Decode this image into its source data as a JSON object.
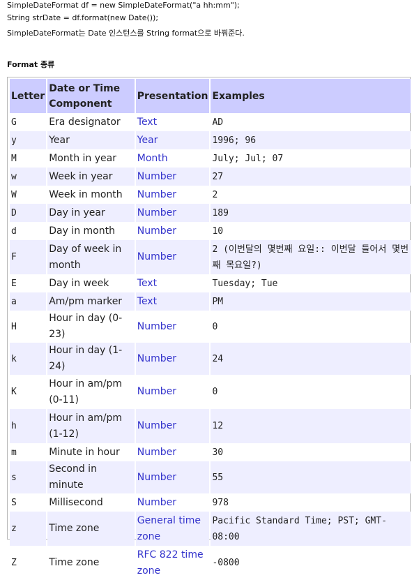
{
  "code_lines": [
    "SimpleDateFormat df = new SimpleDateFormat(\"a hh:mm\");",
    "String strDate = df.format(new Date());",
    "SimpleDateFormat는 Date 인스턴스를 String format으로 바꿔준다."
  ],
  "section_title": "Format 종류",
  "table": {
    "headers": [
      "Letter",
      "Date or Time Component",
      "Presentation",
      "Examples"
    ],
    "rows": [
      {
        "letter": "G",
        "component": "Era designator",
        "presentation": "Text",
        "example": "AD"
      },
      {
        "letter": "y",
        "component": "Year",
        "presentation": "Year",
        "example": "1996; 96"
      },
      {
        "letter": "M",
        "component": "Month in year",
        "presentation": "Month",
        "example": "July; Jul; 07"
      },
      {
        "letter": "w",
        "component": "Week in year",
        "presentation": "Number",
        "example": "27"
      },
      {
        "letter": "W",
        "component": "Week in month",
        "presentation": "Number",
        "example": "2"
      },
      {
        "letter": "D",
        "component": "Day in year",
        "presentation": "Number",
        "example": "189"
      },
      {
        "letter": "d",
        "component": "Day in month",
        "presentation": "Number",
        "example": "10"
      },
      {
        "letter": "F",
        "component": "Day of week in month",
        "presentation": "Number",
        "example": "2 (이번달의 몇번째 요일:: 이번달 들어서 몇번째 목요일?)"
      },
      {
        "letter": "E",
        "component": "Day in week",
        "presentation": "Text",
        "example": "Tuesday; Tue"
      },
      {
        "letter": "a",
        "component": "Am/pm marker",
        "presentation": "Text",
        "example": "PM"
      },
      {
        "letter": "H",
        "component": "Hour in day (0-23)",
        "presentation": "Number",
        "example": "0"
      },
      {
        "letter": "k",
        "component": "Hour in day (1-24)",
        "presentation": "Number",
        "example": "24"
      },
      {
        "letter": "K",
        "component": "Hour in am/pm (0-11)",
        "presentation": "Number",
        "example": "0"
      },
      {
        "letter": "h",
        "component": "Hour in am/pm (1-12)",
        "presentation": "Number",
        "example": "12"
      },
      {
        "letter": "m",
        "component": "Minute in hour",
        "presentation": "Number",
        "example": "30"
      },
      {
        "letter": "s",
        "component": "Second in minute",
        "presentation": "Number",
        "example": "55"
      },
      {
        "letter": "S",
        "component": "Millisecond",
        "presentation": "Number",
        "example": "978"
      },
      {
        "letter": "z",
        "component": "Time zone",
        "presentation": "General time zone",
        "example": "Pacific Standard Time; PST; GMT-08:00"
      },
      {
        "letter": "Z",
        "component": "Time zone",
        "presentation": "RFC 822 time zone",
        "example": "-0800"
      }
    ]
  },
  "colors": {
    "header_bg": "#ccccff",
    "alt_row_bg": "#eeeeff",
    "link_text": "#3333cc"
  }
}
